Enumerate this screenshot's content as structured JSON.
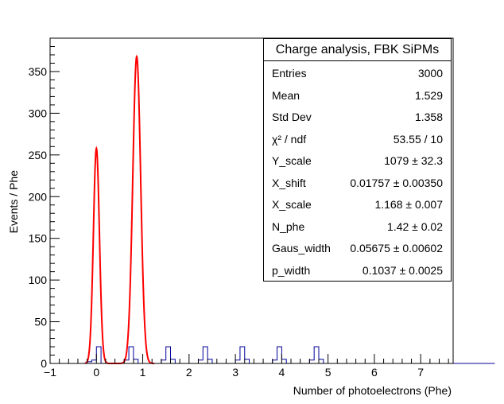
{
  "chart_data": {
    "type": "histogram",
    "title": "Charge analysis, FBK SiPMs",
    "xlabel": "Number of photoelectrons (Phe)",
    "ylabel": "Events / Phe",
    "xlim": [
      -1,
      7.7
    ],
    "ylim": [
      0,
      390
    ],
    "x_ticks": [
      -1,
      0,
      1,
      2,
      3,
      4,
      5,
      6,
      7
    ],
    "x_tick_labels": [
      "−1",
      "0",
      "1",
      "2",
      "3",
      "4",
      "5",
      "6",
      "7"
    ],
    "y_ticks": [
      0,
      50,
      100,
      150,
      200,
      250,
      300,
      350
    ],
    "y_tick_labels": [
      "0",
      "50",
      "100",
      "150",
      "200",
      "250",
      "300",
      "350"
    ],
    "histogram": {
      "name": "data",
      "color": "#000099",
      "bin_start": -0.3,
      "bin_width": 0.1,
      "counts": [
        0,
        2,
        4,
        20,
        0,
        0,
        0,
        0,
        0,
        4,
        20,
        5,
        0,
        0,
        0,
        0,
        0,
        4,
        20,
        5,
        0,
        0,
        0,
        0,
        0,
        4,
        20,
        5,
        0,
        0,
        0,
        0,
        0,
        4,
        20,
        5,
        0,
        0,
        0,
        0,
        0,
        4,
        20,
        5,
        0,
        0,
        0,
        0,
        0,
        4,
        20,
        5,
        0,
        0,
        0,
        0,
        0,
        0,
        0,
        0,
        0,
        0,
        0,
        0,
        0,
        0,
        0,
        0,
        0,
        0,
        0,
        0,
        0,
        0,
        0,
        0,
        0,
        0,
        0,
        0,
        0,
        0,
        0,
        0,
        0,
        0,
        0,
        0,
        0
      ]
    },
    "fit": {
      "name": "fit",
      "color": "#ff0000",
      "peaks": [
        {
          "mean": 0.0,
          "sigma": 0.065,
          "amplitude": 258
        },
        {
          "mean": 0.87,
          "sigma": 0.085,
          "amplitude": 368
        }
      ],
      "x_range": [
        -0.25,
        1.25
      ]
    }
  },
  "stats": {
    "title": "Charge analysis, FBK SiPMs",
    "rows": [
      {
        "label": "Entries",
        "value": "3000"
      },
      {
        "label": "Mean",
        "value": "1.529"
      },
      {
        "label": "Std Dev",
        "value": "1.358"
      },
      {
        "label": "χ² / ndf",
        "value": "53.55 / 10"
      },
      {
        "label": "Y_scale",
        "value": "1079 ± 32.3"
      },
      {
        "label": "X_shift",
        "value": "0.01757 ± 0.00350"
      },
      {
        "label": "X_scale",
        "value": "1.168 ± 0.007"
      },
      {
        "label": "N_phe",
        "value": "1.42 ± 0.02"
      },
      {
        "label": "Gaus_width",
        "value": "0.05675 ± 0.00602"
      },
      {
        "label": "p_width",
        "value": "0.1037 ± 0.0025"
      }
    ]
  }
}
